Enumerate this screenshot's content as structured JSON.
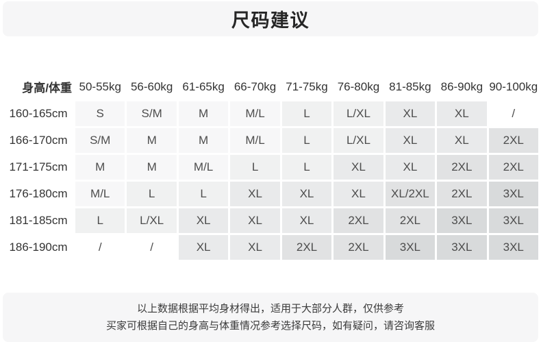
{
  "title": "尺码建议",
  "table": {
    "corner_label": "身高/体重",
    "weight_headers": [
      "50-55kg",
      "56-60kg",
      "61-65kg",
      "66-70kg",
      "71-75kg",
      "76-80kg",
      "81-85kg",
      "86-90kg",
      "90-100kg"
    ],
    "rows": [
      {
        "height": "160-165cm",
        "sizes": [
          "S",
          "S/M",
          "M",
          "M/L",
          "L",
          "L/XL",
          "XL",
          "XL",
          "/"
        ]
      },
      {
        "height": "166-170cm",
        "sizes": [
          "S/M",
          "M",
          "M",
          "M/L",
          "L",
          "L/XL",
          "XL",
          "XL",
          "2XL"
        ]
      },
      {
        "height": "171-175cm",
        "sizes": [
          "M",
          "M",
          "M/L",
          "L",
          "L",
          "XL",
          "XL",
          "2XL",
          "2XL"
        ]
      },
      {
        "height": "176-180cm",
        "sizes": [
          "M/L",
          "L",
          "L",
          "XL",
          "XL",
          "XL",
          "XL/2XL",
          "2XL",
          "3XL"
        ]
      },
      {
        "height": "181-185cm",
        "sizes": [
          "L",
          "L/XL",
          "XL",
          "XL",
          "XL",
          "2XL",
          "2XL",
          "3XL",
          "3XL"
        ]
      },
      {
        "height": "186-190cm",
        "sizes": [
          "/",
          "/",
          "XL",
          "XL",
          "2XL",
          "2XL",
          "3XL",
          "3XL",
          "3XL"
        ]
      }
    ]
  },
  "footer": {
    "line1": "以上数据根据平均身材得出，适用于大部分人群，仅供参考",
    "line2": "买家可根据自己的身高与体重情况参考选择尺码，如有疑问，请咨询客服"
  },
  "colors": {
    "bar_bg": "#f6f6f7",
    "header_text": "#333333",
    "cell_text": "#4d4d4d",
    "size_shades": {
      "/": "#ffffff",
      "S": "#f7f7f8",
      "S/M": "#f7f7f8",
      "M": "#f7f7f8",
      "M/L": "#f7f7f8",
      "L": "#f0f1f1",
      "L/XL": "#f0f1f1",
      "XL": "#e9eaeb",
      "XL/2XL": "#e1e2e3",
      "2XL": "#e1e2e3",
      "3XL": "#d8dadb"
    }
  }
}
